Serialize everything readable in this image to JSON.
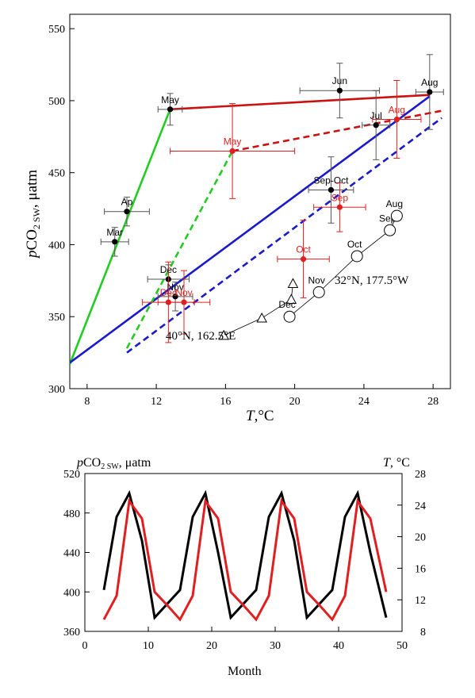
{
  "chart_data": [
    {
      "type": "scatter",
      "xlabel_var": "T",
      "xlabel_unit": ",°C",
      "ylabel_var": "p",
      "ylabel_main": "CO",
      "ylabel_sub": "2 SW",
      "ylabel_unit": ", μatm",
      "xlim": [
        7,
        29
      ],
      "ylim": [
        300,
        560
      ],
      "xticks": [
        8,
        12,
        16,
        20,
        24,
        28
      ],
      "yticks": [
        300,
        350,
        400,
        450,
        500,
        550
      ],
      "station_labels": {
        "west": "40°N, 162.5°E",
        "east": "32°N, 177.5°W"
      },
      "points": [
        {
          "label": "May",
          "x": 12.8,
          "y": 494,
          "xerr": 0.7,
          "yerr": 11,
          "color": "#000000"
        },
        {
          "label": "Jun",
          "x": 22.6,
          "y": 507,
          "xerr": 2.3,
          "yerr": 19,
          "color": "#000000"
        },
        {
          "label": "Jul",
          "x": 24.7,
          "y": 483,
          "xerr": 0.8,
          "yerr": 24,
          "color": "#000000"
        },
        {
          "label": "Aug",
          "x": 27.8,
          "y": 506,
          "xerr": 0.8,
          "yerr": 26,
          "color": "#000000"
        },
        {
          "label": "Ap",
          "x": 10.3,
          "y": 423,
          "xerr": 1.3,
          "yerr": 10,
          "color": "#000000"
        },
        {
          "label": "Mar",
          "x": 9.6,
          "y": 402,
          "xerr": 0.8,
          "yerr": 10,
          "color": "#000000"
        },
        {
          "label": "Dec",
          "x": 12.7,
          "y": 376,
          "xerr": 1.2,
          "yerr": 10,
          "color": "#000000"
        },
        {
          "label": "Nov",
          "x": 13.1,
          "y": 364,
          "xerr": 1.0,
          "yerr": 10,
          "color": "#000000"
        },
        {
          "label": "Sep-Oct",
          "x": 22.1,
          "y": 438,
          "xerr": 1.3,
          "yerr": 23,
          "color": "#000000"
        },
        {
          "label": "May",
          "x": 16.4,
          "y": 465,
          "xerr": 3.6,
          "yerr": 33,
          "color": "#e02020"
        },
        {
          "label": "Aug",
          "x": 25.9,
          "y": 487,
          "xerr": 1.4,
          "yerr": 27,
          "color": "#e02020"
        },
        {
          "label": "Sep",
          "x": 22.6,
          "y": 426,
          "xerr": 1.5,
          "yerr": 17,
          "color": "#e02020"
        },
        {
          "label": "Oct",
          "x": 20.5,
          "y": 390,
          "xerr": 1.5,
          "yerr": 27,
          "color": "#e02020"
        },
        {
          "label": "Dec",
          "x": 12.7,
          "y": 360,
          "xerr": 1.5,
          "yerr": 28,
          "color": "#e02020"
        },
        {
          "label": "Nov",
          "x": 13.6,
          "y": 360,
          "xerr": 1.5,
          "yerr": 22,
          "color": "#e02020"
        }
      ],
      "fit_lines": [
        {
          "color": "#22cc22",
          "dash": false,
          "x": [
            7,
            12.8
          ],
          "y": [
            317,
            494
          ]
        },
        {
          "color": "#cc1111",
          "dash": false,
          "x": [
            12.8,
            27.8
          ],
          "y": [
            494,
            504
          ]
        },
        {
          "color": "#1a1acc",
          "dash": false,
          "x": [
            7,
            27.8
          ],
          "y": [
            318,
            503
          ]
        },
        {
          "color": "#22cc22",
          "dash": true,
          "x": [
            10.3,
            16.4
          ],
          "y": [
            328,
            465
          ]
        },
        {
          "color": "#cc1111",
          "dash": true,
          "x": [
            16.4,
            28.5
          ],
          "y": [
            465,
            493
          ]
        },
        {
          "color": "#1a1acc",
          "dash": true,
          "x": [
            10.3,
            28.5
          ],
          "y": [
            325,
            488
          ]
        }
      ],
      "triangles": [
        {
          "x": 15.9,
          "y": 337
        },
        {
          "x": 18.1,
          "y": 349
        },
        {
          "x": 19.8,
          "y": 362
        },
        {
          "x": 19.9,
          "y": 373
        }
      ],
      "circles": [
        {
          "label": "Dec",
          "x": 19.7,
          "y": 350
        },
        {
          "label": "Nov",
          "x": 21.4,
          "y": 367
        },
        {
          "label": "Oct",
          "x": 23.6,
          "y": 392
        },
        {
          "label": "Sep",
          "x": 25.5,
          "y": 410
        },
        {
          "label": "Aug",
          "x": 25.9,
          "y": 420
        }
      ]
    },
    {
      "type": "line",
      "title_left_var": "p",
      "title_left_main": "CO",
      "title_left_sub": "2 SW",
      "title_left_unit": ", μatm",
      "title_right_var": "T",
      "title_right_unit": ", °C",
      "xlabel": "Month",
      "xlim": [
        0,
        50
      ],
      "ylim_left": [
        360,
        520
      ],
      "ylim_right": [
        8,
        28
      ],
      "xticks": [
        0,
        10,
        20,
        30,
        40,
        50
      ],
      "yticks_left": [
        360,
        400,
        440,
        480,
        520
      ],
      "yticks_right": [
        8,
        12,
        16,
        20,
        24,
        28
      ],
      "series": [
        {
          "color": "#000000",
          "axis": "left",
          "x": [
            3,
            5,
            7,
            9,
            11,
            13,
            15,
            17,
            19,
            21,
            23,
            25,
            27,
            29,
            31,
            33,
            35,
            37,
            39,
            41,
            43,
            45,
            47.5
          ],
          "y": [
            402,
            476,
            500,
            452,
            374,
            388,
            402,
            476,
            500,
            440,
            374,
            388,
            402,
            476,
            500,
            452,
            374,
            388,
            402,
            476,
            500,
            440,
            374
          ]
        },
        {
          "color": "#e02020",
          "axis": "right",
          "x": [
            3,
            5,
            7,
            9,
            11,
            13,
            15,
            17,
            19,
            21,
            23,
            25,
            27,
            29,
            31,
            33,
            35,
            37,
            39,
            41,
            43,
            45,
            47.5
          ],
          "y": [
            9.5,
            12.5,
            24.5,
            22.3,
            13,
            11.3,
            9.5,
            12.5,
            24.5,
            22.3,
            13,
            11.3,
            9.5,
            12.5,
            24.5,
            22.3,
            13,
            11.3,
            9.5,
            12.5,
            24.5,
            22.3,
            13
          ]
        }
      ]
    }
  ]
}
